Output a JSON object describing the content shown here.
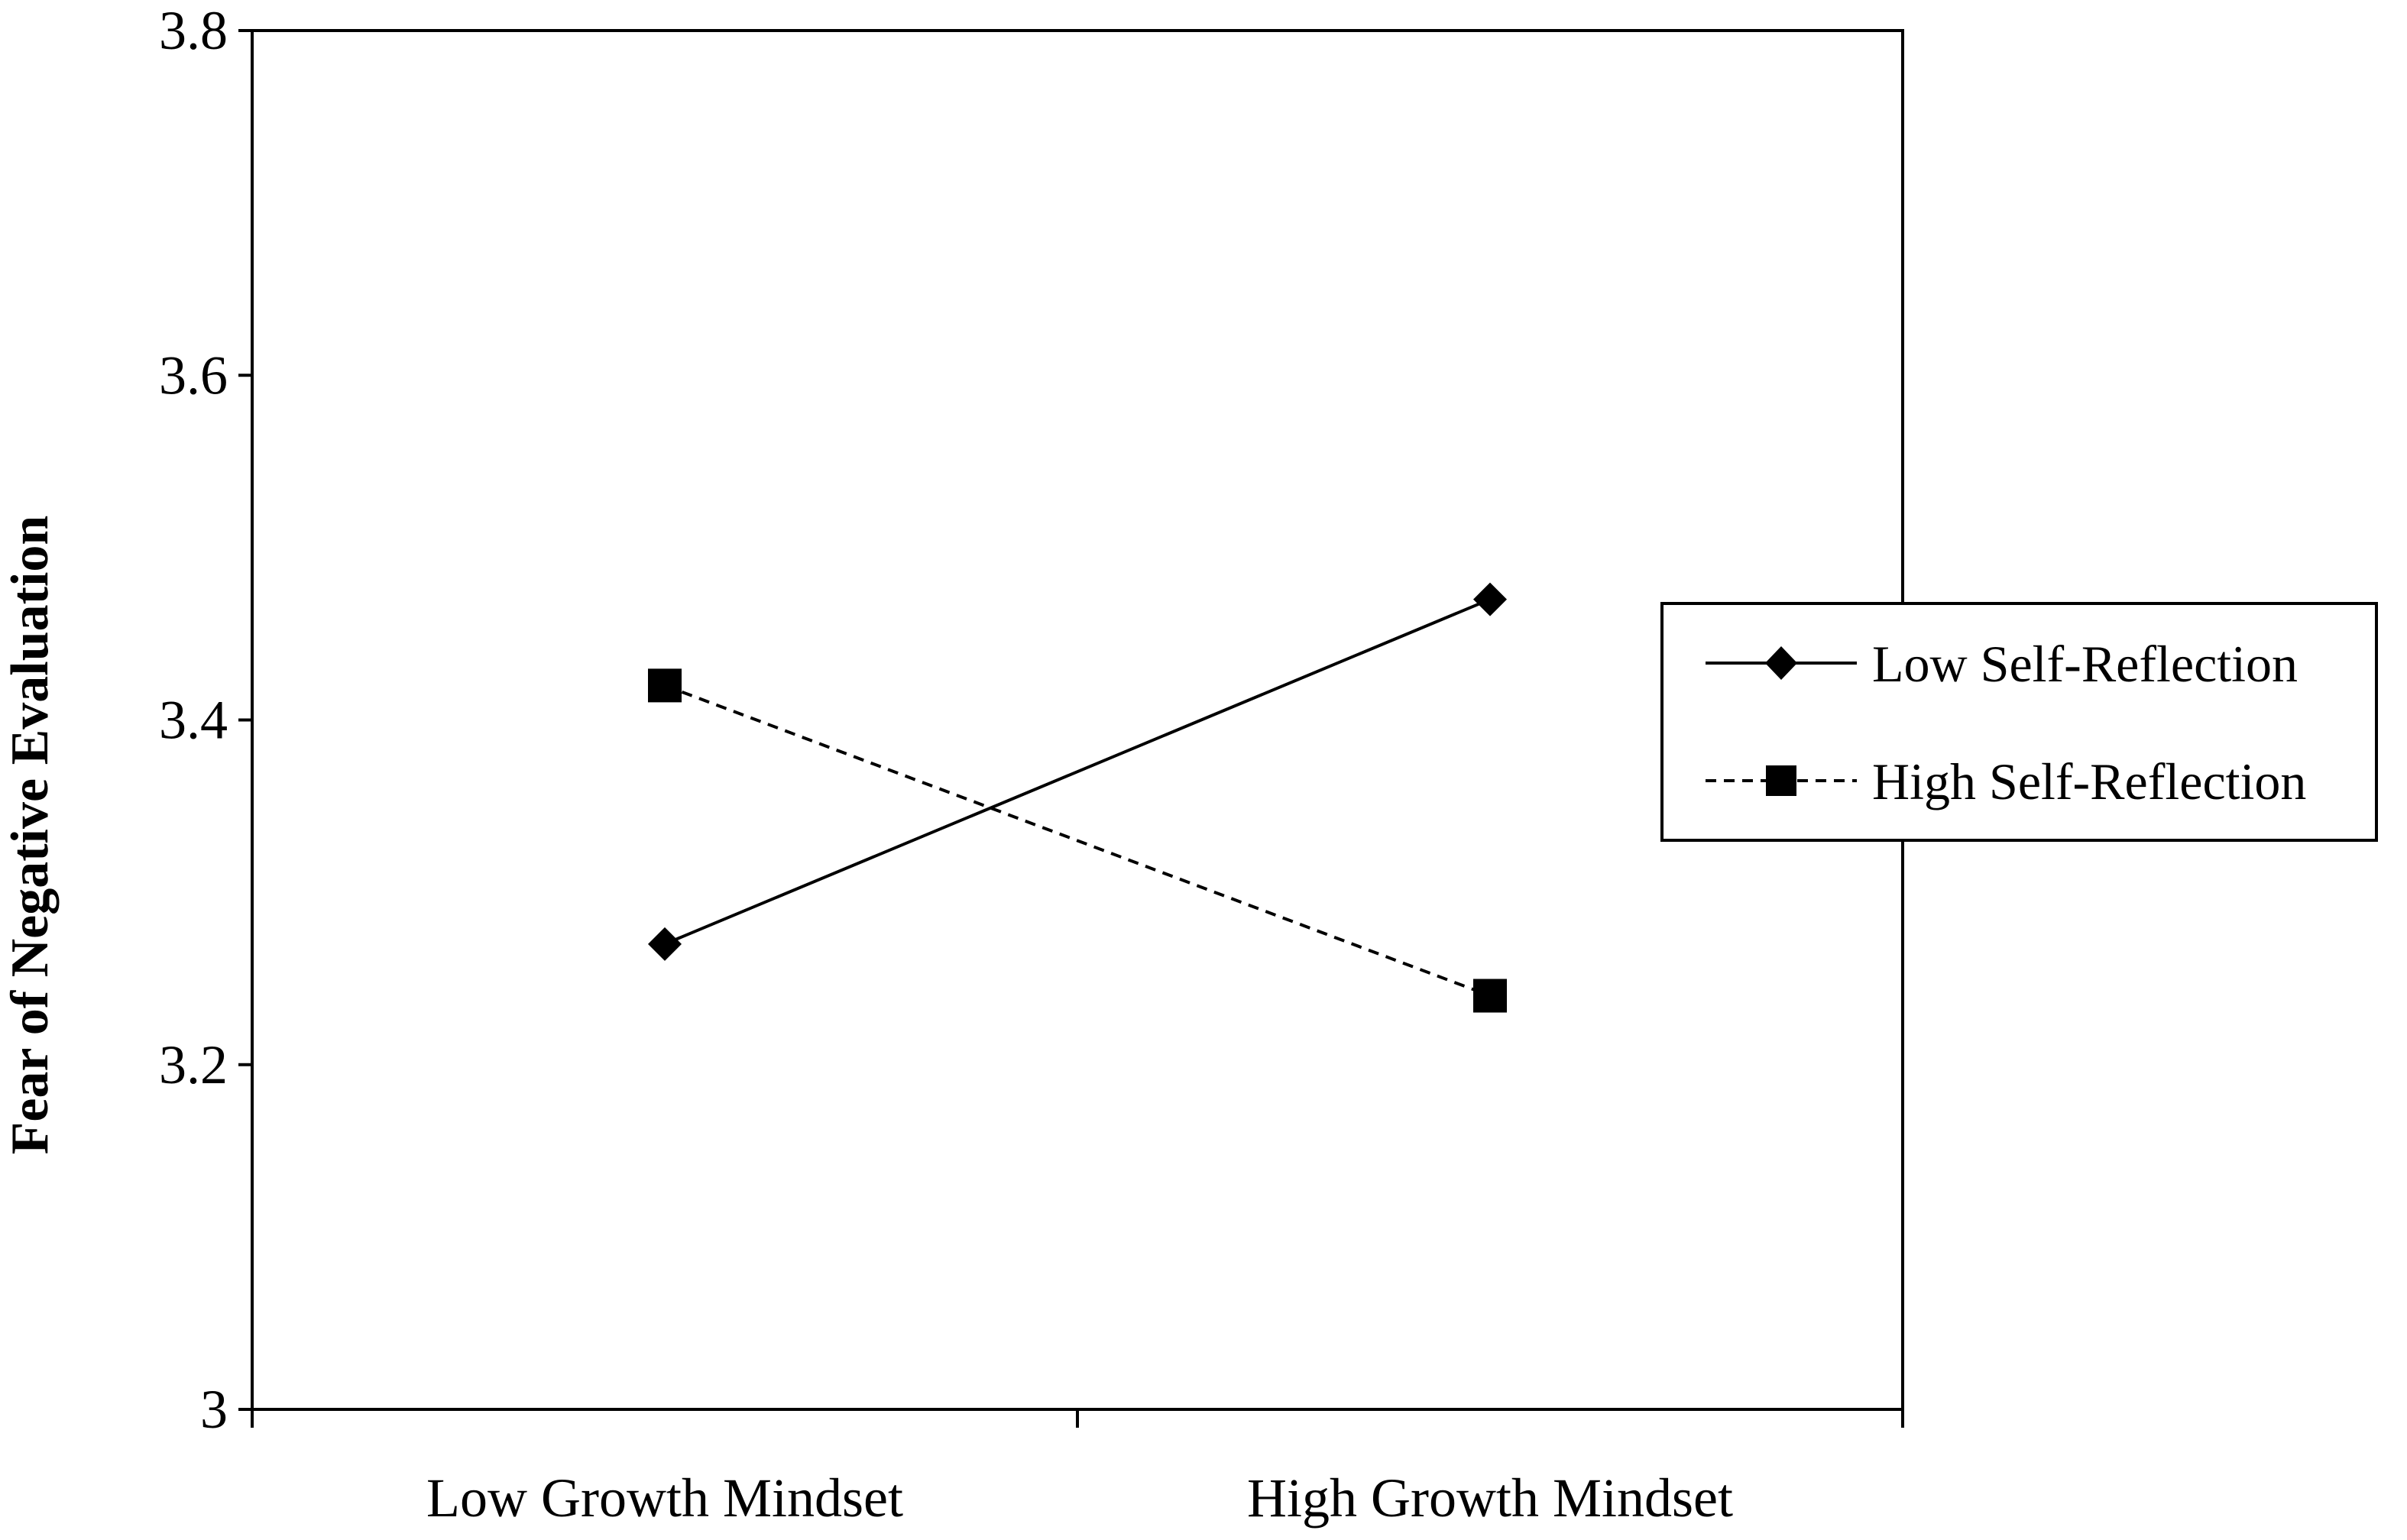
{
  "chart_data": {
    "type": "line",
    "categories": [
      "Low Growth Mindset",
      "High Growth Mindset"
    ],
    "series": [
      {
        "name": "Low Self-Reflection",
        "values": [
          3.27,
          3.47
        ],
        "line_style": "solid",
        "marker": "diamond",
        "color": "#000000"
      },
      {
        "name": "High Self-Reflection",
        "values": [
          3.42,
          3.24
        ],
        "line_style": "dashed",
        "marker": "square",
        "color": "#000000"
      }
    ],
    "ylabel": "Fear of Negative Evaluation",
    "ylim": [
      3,
      3.8
    ],
    "yticks": [
      3,
      3.2,
      3.4,
      3.6,
      3.8
    ],
    "ytick_labels": [
      "3",
      "3.2",
      "3.4",
      "3.6",
      "3.8"
    ],
    "grid": false,
    "legend_position": "right"
  }
}
